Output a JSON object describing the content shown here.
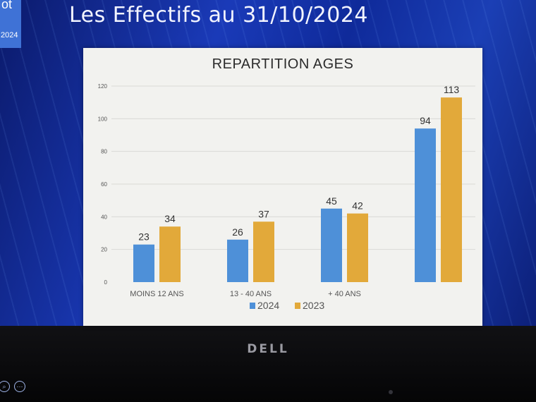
{
  "corner": {
    "top_text": "ot",
    "year": "2024"
  },
  "slide_title": "Les Effectifs au 31/10/2024",
  "brand": "DELL",
  "colors": {
    "series_2024": "#4e90d8",
    "series_2023": "#e2a93a"
  },
  "chart_data": {
    "type": "bar",
    "title": "REPARTITION  AGES",
    "categories": [
      "MOINS 12 ANS",
      "13  - 40 ANS",
      "+ 40 ANS",
      ""
    ],
    "series": [
      {
        "name": "2024",
        "values": [
          23,
          26,
          45,
          94
        ]
      },
      {
        "name": "2023",
        "values": [
          34,
          37,
          42,
          113
        ]
      }
    ],
    "yticks": [
      "0",
      "20",
      "40",
      "60",
      "80",
      "100",
      "120"
    ],
    "ylim": [
      0,
      120
    ],
    "grid": true,
    "legend_position": "bottom"
  }
}
